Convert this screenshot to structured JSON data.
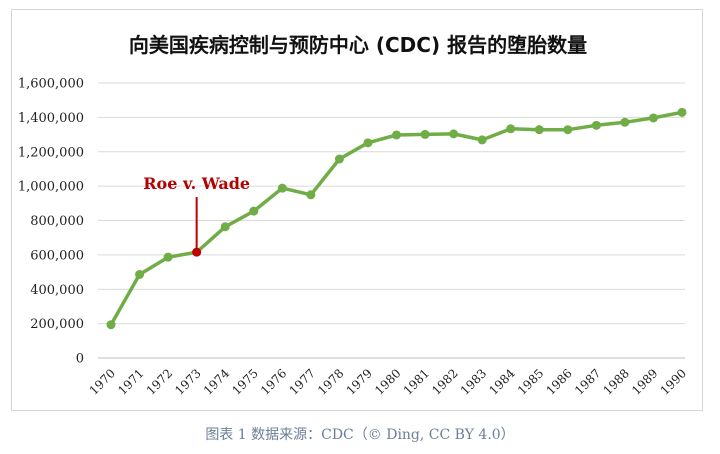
{
  "chart_data": {
    "type": "line",
    "title": "向美国疾病控制与预防中心 (CDC) 报告的堕胎数量",
    "x": [
      "1970",
      "1971",
      "1972",
      "1973",
      "1974",
      "1975",
      "1976",
      "1977",
      "1978",
      "1979",
      "1980",
      "1981",
      "1982",
      "1983",
      "1984",
      "1985",
      "1986",
      "1987",
      "1988",
      "1989",
      "1990"
    ],
    "series": [
      {
        "values": [
          193491,
          485816,
          586760,
          615831,
          763476,
          854853,
          988267,
          949697,
          1157776,
          1251921,
          1297606,
          1300760,
          1303980,
          1268987,
          1333521,
          1328570,
          1328112,
          1353671,
          1371285,
          1396658,
          1429247
        ]
      }
    ],
    "yticks": [
      "0",
      "200,000",
      "400,000",
      "600,000",
      "800,000",
      "1,000,000",
      "1,200,000",
      "1,400,000",
      "1,600,000"
    ],
    "ylim": [
      0,
      1600000
    ],
    "grid": true,
    "line_color": "#70ad47",
    "annotation": {
      "text": "Roe v. Wade",
      "x": "1973",
      "color": "#c00000"
    }
  },
  "caption": "图表 1 数据来源：CDC（© Ding, CC BY 4.0）"
}
